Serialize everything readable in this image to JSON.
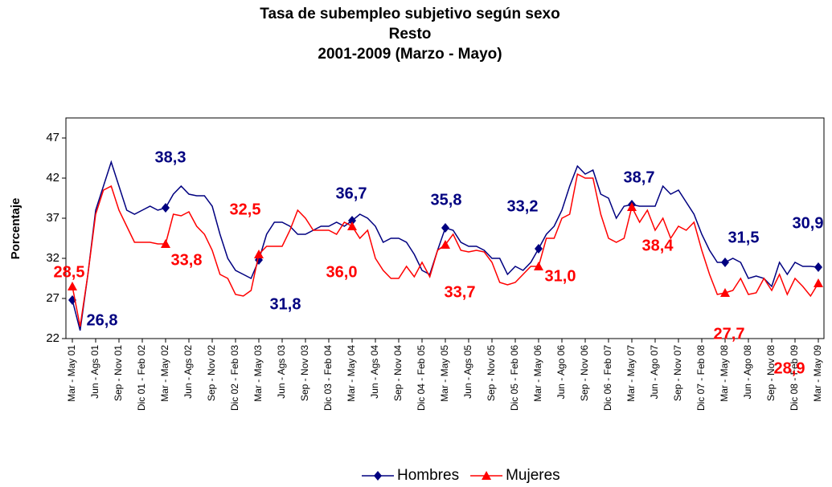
{
  "chart_data": {
    "type": "line",
    "title": [
      "Tasa de subempleo subjetivo según sexo",
      "Resto",
      "2001-2009 (Marzo - Mayo)"
    ],
    "y_label": "Porcentaje",
    "categories": [
      "Mar - May 01",
      null,
      null,
      "Jun - Ags 01",
      null,
      null,
      "Sep - Nov 01",
      null,
      null,
      "Dic 01 - Feb 02",
      null,
      null,
      "Mar - May 02",
      null,
      null,
      "Jun - Ags 02",
      null,
      null,
      "Sep - Nov 02",
      null,
      null,
      "Dic 02 - Feb 03",
      null,
      null,
      "Mar - May 03",
      null,
      null,
      "Jun - Ags 03",
      null,
      null,
      "Sep - Nov 03",
      null,
      null,
      "Dic 03 - Feb 04",
      null,
      null,
      "Mar - May 04",
      null,
      null,
      "Jun - Ags 04",
      null,
      null,
      "Sep - Nov 04",
      null,
      null,
      "Dic 04 - Feb 05",
      null,
      null,
      "Mar - May 05",
      null,
      null,
      "Jun - Ags 05",
      null,
      null,
      "Sep - Nov 05",
      null,
      null,
      "Dic 05 - Feb 06",
      null,
      null,
      "Mar - May 06",
      null,
      null,
      "Jun - Ago 06",
      null,
      null,
      "Sep - Nov 06",
      null,
      null,
      "Dic 06 - Feb 07",
      null,
      null,
      "Mar - May 07",
      null,
      null,
      "Jun - Ago 07",
      null,
      null,
      "Sep - Nov 07",
      null,
      null,
      "Dic 07 - Feb 08",
      null,
      null,
      "Mar - May 08",
      null,
      null,
      "Jun - Ago 08",
      null,
      null,
      "Sep - Nov 08",
      null,
      null,
      "Dic 08 - Feb 09",
      null,
      null,
      "Mar - May 09"
    ],
    "series": [
      {
        "name": "Hombres",
        "color": "#000080",
        "marker": "diamond",
        "values": [
          26.8,
          23,
          30,
          38,
          41,
          44,
          41,
          38,
          37.5,
          38,
          38.5,
          38,
          38.3,
          40,
          41,
          40,
          39.8,
          39.8,
          38.5,
          35,
          32,
          30.5,
          30,
          29.5,
          31.8,
          35,
          36.5,
          36.5,
          36,
          35,
          35,
          35.5,
          36,
          36,
          36.5,
          36,
          36.7,
          37.5,
          37,
          36,
          34,
          34.5,
          34.5,
          34,
          32.5,
          30.5,
          30,
          33,
          35.8,
          35.5,
          34,
          33.5,
          33.5,
          33,
          32,
          32,
          30,
          31,
          30.5,
          31.5,
          33.2,
          35,
          36,
          38,
          41,
          43.5,
          42.5,
          43,
          40,
          39.5,
          37,
          38.5,
          38.7,
          38.5,
          38.5,
          38.5,
          41,
          40,
          40.5,
          39,
          37.5,
          35,
          33,
          31.5,
          31.5,
          32,
          31.5,
          29.5,
          29.8,
          29.5,
          28.5,
          31.5,
          30,
          31.5,
          31,
          31,
          30.9
        ],
        "value_labels": [
          "26,8",
          null,
          null,
          null,
          null,
          null,
          null,
          null,
          null,
          null,
          null,
          null,
          "38,3",
          null,
          null,
          null,
          null,
          null,
          null,
          null,
          null,
          null,
          null,
          null,
          "31,8",
          null,
          null,
          null,
          null,
          null,
          null,
          null,
          null,
          null,
          null,
          null,
          "36,7",
          null,
          null,
          null,
          null,
          null,
          null,
          null,
          null,
          null,
          null,
          null,
          "35,8",
          null,
          null,
          null,
          null,
          null,
          null,
          null,
          null,
          null,
          null,
          null,
          "33,2",
          null,
          null,
          null,
          null,
          null,
          null,
          null,
          null,
          null,
          null,
          null,
          "38,7",
          null,
          null,
          null,
          null,
          null,
          null,
          null,
          null,
          null,
          null,
          null,
          "31,5",
          null,
          null,
          null,
          null,
          null,
          null,
          null,
          null,
          null,
          null,
          null,
          "30,9"
        ]
      },
      {
        "name": "Mujeres",
        "color": "#ff0000",
        "marker": "triangle",
        "values": [
          28.5,
          23.5,
          30,
          37.5,
          40.5,
          41,
          38,
          36,
          34,
          34,
          34,
          33.8,
          33.8,
          37.5,
          37.3,
          37.8,
          36,
          35,
          33,
          30,
          29.5,
          27.5,
          27.3,
          28,
          32.5,
          33.5,
          33.5,
          33.5,
          35.5,
          38,
          37,
          35.5,
          35.5,
          35.5,
          35,
          36.5,
          36.0,
          34.5,
          35.5,
          32,
          30.5,
          29.5,
          29.5,
          31,
          29.7,
          31.5,
          29.7,
          33,
          33.7,
          35,
          33,
          32.8,
          33,
          32.8,
          31.5,
          29,
          28.7,
          29,
          30,
          31,
          31.0,
          34.5,
          34.5,
          37,
          37.5,
          42.5,
          42,
          42,
          37.5,
          34.5,
          34,
          34.5,
          38.4,
          36.5,
          38,
          35.5,
          37,
          34.5,
          36,
          35.5,
          36.5,
          33,
          30,
          27.5,
          27.7,
          28,
          29.5,
          27.5,
          27.7,
          29.5,
          28,
          30,
          27.5,
          29.5,
          28.5,
          27.3,
          28.9
        ],
        "value_labels": [
          "28,5",
          null,
          null,
          null,
          null,
          null,
          null,
          null,
          null,
          null,
          null,
          null,
          "33,8",
          null,
          null,
          null,
          null,
          null,
          null,
          null,
          null,
          null,
          null,
          null,
          "32,5",
          null,
          null,
          null,
          null,
          null,
          null,
          null,
          null,
          null,
          null,
          null,
          "36,0",
          null,
          null,
          null,
          null,
          null,
          null,
          null,
          null,
          null,
          null,
          null,
          "33,7",
          null,
          null,
          null,
          null,
          null,
          null,
          null,
          null,
          null,
          null,
          null,
          "31,0",
          null,
          null,
          null,
          null,
          null,
          null,
          null,
          null,
          null,
          null,
          null,
          "38,4",
          null,
          null,
          null,
          null,
          null,
          null,
          null,
          null,
          null,
          null,
          null,
          "27,7",
          null,
          null,
          null,
          null,
          null,
          null,
          null,
          null,
          null,
          null,
          null,
          "28,9"
        ]
      }
    ],
    "ylim": [
      22,
      49.5
    ],
    "yticks": [
      22,
      27,
      32,
      37,
      42,
      47
    ],
    "grid": false,
    "legend": "bottom"
  }
}
